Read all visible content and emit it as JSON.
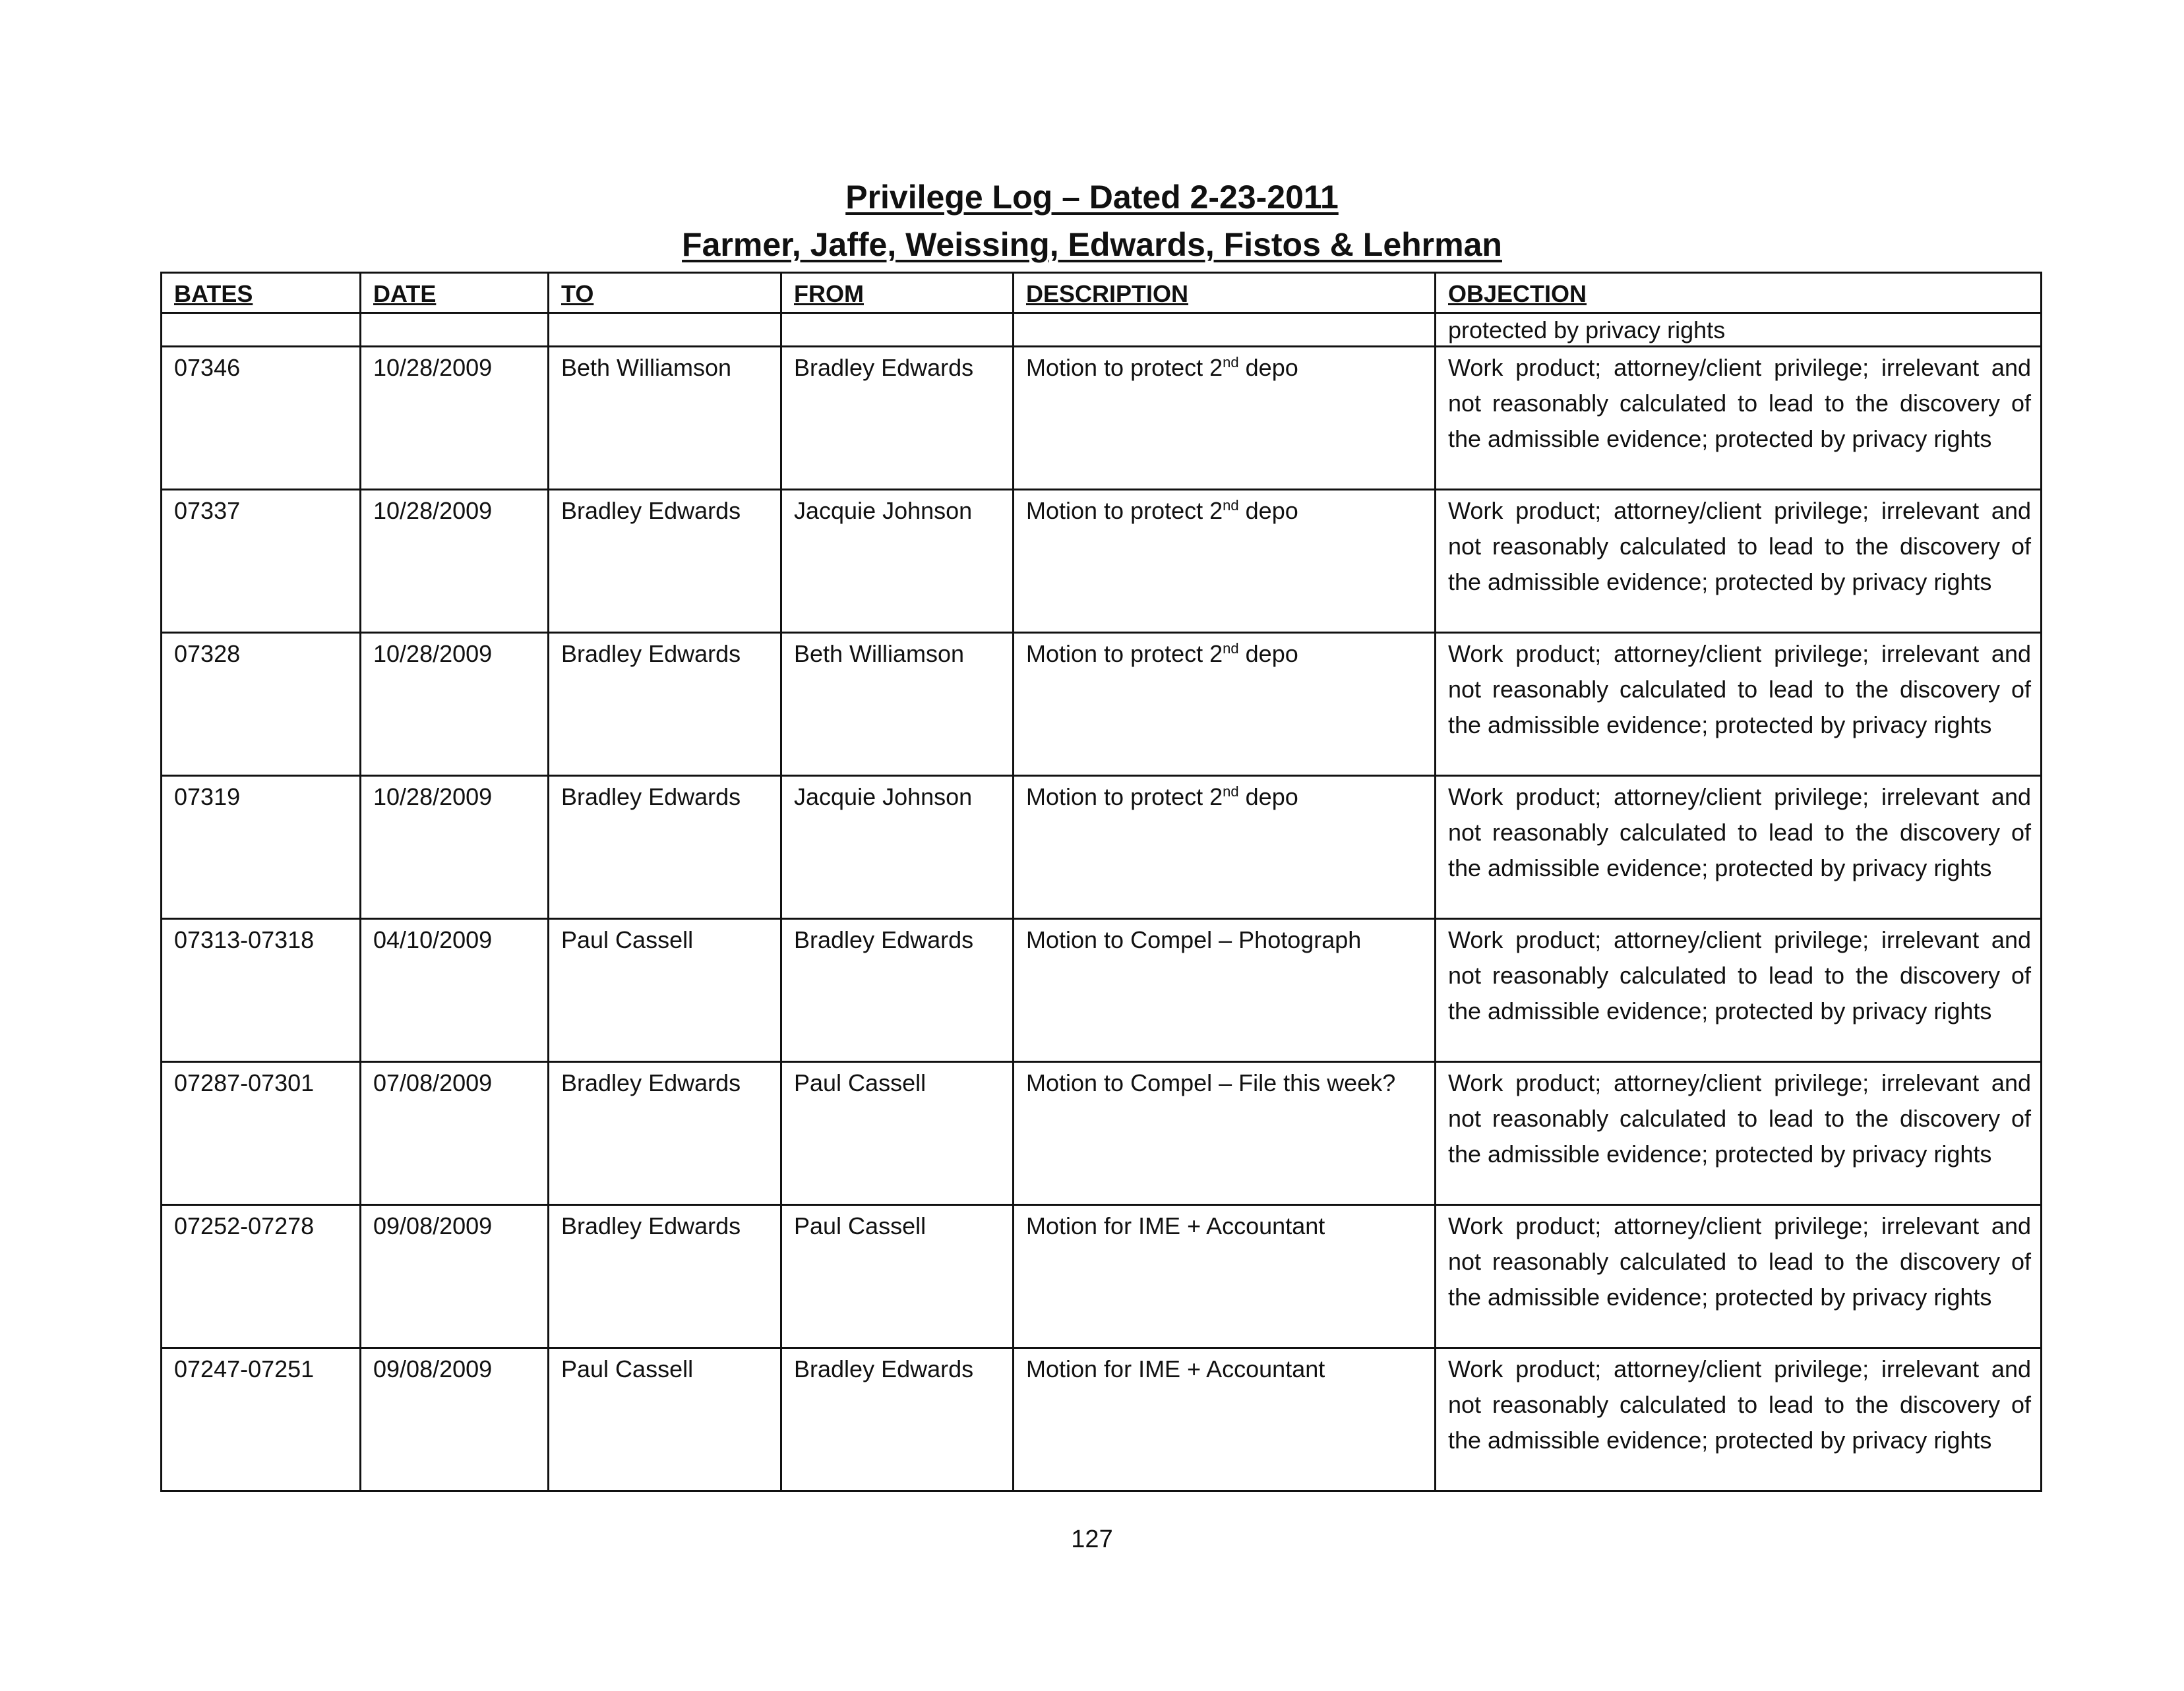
{
  "title": "Privilege Log – Dated 2-23-2011",
  "subtitle": "Farmer, Jaffe, Weissing, Edwards, Fistos & Lehrman",
  "columns": [
    "BATES",
    "DATE",
    "TO",
    "FROM",
    "DESCRIPTION",
    "OBJECTION"
  ],
  "continuation_objection": "protected by privacy rights",
  "objection_text": "Work product; attorney/client privilege; irrelevant and not reasonably calculated to lead to the discovery of the admissible evidence; protected by privacy rights",
  "rows": [
    {
      "bates": "07346",
      "date": "10/28/2009",
      "to": "Beth Williamson",
      "from": "Bradley Edwards",
      "description": "Motion to protect 2",
      "description_sup": "nd",
      "description_tail": " depo"
    },
    {
      "bates": "07337",
      "date": "10/28/2009",
      "to": "Bradley Edwards",
      "from": "Jacquie Johnson",
      "description": "Motion to protect 2",
      "description_sup": "nd",
      "description_tail": " depo"
    },
    {
      "bates": "07328",
      "date": "10/28/2009",
      "to": "Bradley Edwards",
      "from": "Beth Williamson",
      "description": "Motion to protect 2",
      "description_sup": "nd",
      "description_tail": " depo"
    },
    {
      "bates": "07319",
      "date": "10/28/2009",
      "to": "Bradley Edwards",
      "from": "Jacquie Johnson",
      "description": "Motion to protect 2",
      "description_sup": "nd",
      "description_tail": " depo"
    },
    {
      "bates": "07313-07318",
      "date": "04/10/2009",
      "to": "Paul Cassell",
      "from": "Bradley Edwards",
      "description": "Motion to Compel – Photograph",
      "description_sup": "",
      "description_tail": ""
    },
    {
      "bates": "07287-07301",
      "date": "07/08/2009",
      "to": "Bradley Edwards",
      "from": "Paul Cassell",
      "description": "Motion to Compel – File this week?",
      "description_sup": "",
      "description_tail": ""
    },
    {
      "bates": "07252-07278",
      "date": "09/08/2009",
      "to": "Bradley Edwards",
      "from": "Paul Cassell",
      "description": "Motion for IME + Accountant",
      "description_sup": "",
      "description_tail": ""
    },
    {
      "bates": "07247-07251",
      "date": "09/08/2009",
      "to": "Paul Cassell",
      "from": "Bradley Edwards",
      "description": "Motion for IME + Accountant",
      "description_sup": "",
      "description_tail": ""
    }
  ],
  "page_number": "127"
}
